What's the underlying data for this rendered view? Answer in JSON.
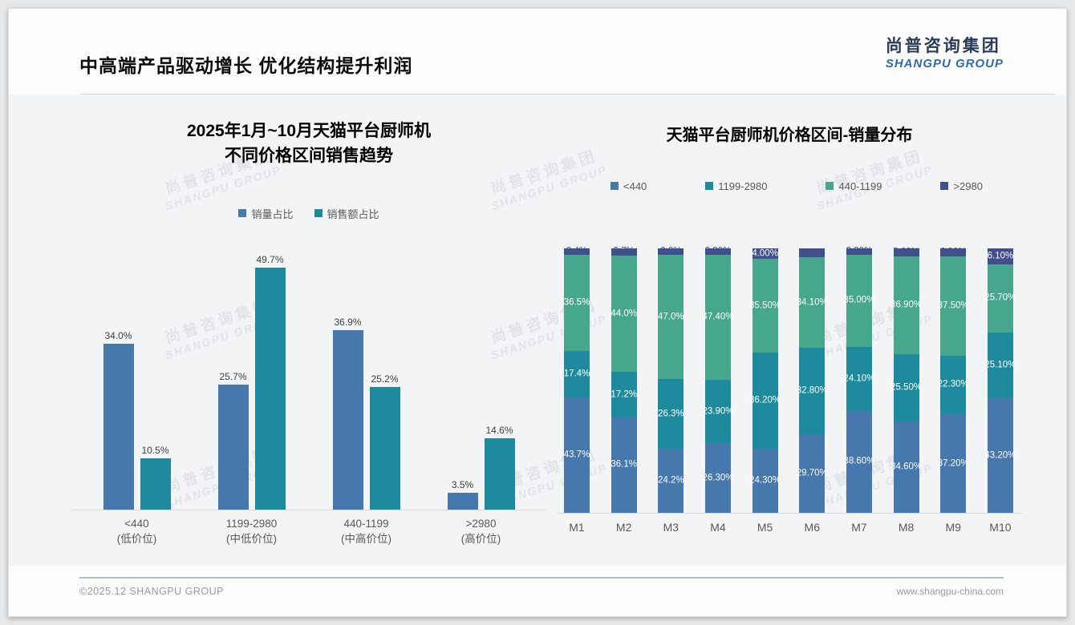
{
  "header": {
    "title": "中高端产品驱动增长 优化结构提升利润",
    "logo_cn": "尚普咨询集团",
    "logo_en": "SHANGPU GROUP"
  },
  "watermark": {
    "line1": "尚普咨询集团",
    "line2": "SHANGPU GROUP"
  },
  "footer": {
    "left": "©2025.12 SHANGPU GROUP",
    "right": "www.shangpu-china.com"
  },
  "colors": {
    "blue": "#4678AE",
    "teal": "#1E8A9E",
    "green": "#47A78C",
    "navy": "#414F8B"
  },
  "chart_data": [
    {
      "type": "bar",
      "title": "2025年1月~10月天猫平台厨师机 不同价格区间销售趋势",
      "title_lines": [
        "2025年1月~10月天猫平台厨师机",
        "不同价格区间销售趋势"
      ],
      "legend_position": "top",
      "grid": false,
      "ylim": [
        0,
        54
      ],
      "unit": "%",
      "categories": [
        "<440",
        "1199-2980",
        "440-1199",
        ">2980"
      ],
      "category_sublabels": [
        "(低价位)",
        "(中低价位)",
        "(中高价位)",
        "(高价位)"
      ],
      "series": [
        {
          "name": "销量占比",
          "color": "#4678AE",
          "values": [
            34.0,
            25.7,
            36.9,
            3.5
          ],
          "labels": [
            "34.0%",
            "25.7%",
            "36.9%",
            "3.5%"
          ]
        },
        {
          "name": "销售额占比",
          "color": "#1E8A9E",
          "values": [
            10.5,
            49.7,
            25.2,
            14.6
          ],
          "labels": [
            "10.5%",
            "49.7%",
            "25.2%",
            "14.6%"
          ]
        }
      ]
    },
    {
      "type": "stacked-bar",
      "title": "天猫平台厨师机价格区间-销量分布",
      "legend_position": "top",
      "grid": false,
      "ylim": [
        0,
        100
      ],
      "stack_total": 100,
      "unit": "%",
      "categories": [
        "M1",
        "M2",
        "M3",
        "M4",
        "M5",
        "M6",
        "M7",
        "M8",
        "M9",
        "M10"
      ],
      "series": [
        {
          "name": "<440",
          "color": "#4678AE",
          "values": [
            43.7,
            36.1,
            24.2,
            26.3,
            24.3,
            29.7,
            38.6,
            34.6,
            37.2,
            43.2
          ],
          "labels": [
            "43.7%",
            "36.1%",
            "24.2%",
            "26.30%",
            "24.30%",
            "29.70%",
            "38.60%",
            "34.60%",
            "37.20%",
            "43.20%"
          ]
        },
        {
          "name": "1199-2980",
          "color": "#1E8A9E",
          "values": [
            17.4,
            17.2,
            26.3,
            23.9,
            36.2,
            32.8,
            24.1,
            25.5,
            22.3,
            25.1
          ],
          "labels": [
            "17.4%",
            "17.2%",
            "26.3%",
            "23.90%",
            "36.20%",
            "32.80%",
            "24.10%",
            "25.50%",
            "22.30%",
            "25.10%"
          ]
        },
        {
          "name": "440-1199",
          "color": "#47A78C",
          "values": [
            36.5,
            44.0,
            47.0,
            47.4,
            35.5,
            34.1,
            35.0,
            36.9,
            37.5,
            25.7
          ],
          "labels": [
            "36.5%",
            "44.0%",
            "47.0%",
            "47.40%",
            "35.50%",
            "34.10%",
            "35.00%",
            "36.90%",
            "37.50%",
            "25.70%"
          ]
        },
        {
          "name": ">2980",
          "color": "#414F8B",
          "values": [
            2.4,
            2.7,
            2.6,
            2.3,
            4.0,
            3.4,
            2.3,
            3.0,
            2.9,
            6.1
          ],
          "labels": [
            "2.4%",
            "2.7%",
            "2.6%",
            "2.30%",
            "4.00%",
            "3.40%",
            "2.30%",
            "3.00%",
            "2.90%",
            "6.10%"
          ]
        }
      ]
    }
  ]
}
